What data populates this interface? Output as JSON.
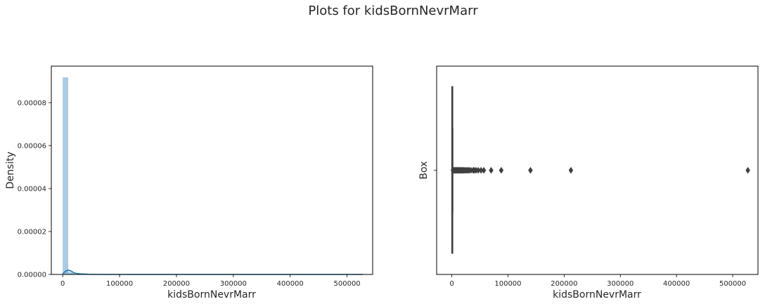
{
  "figure": {
    "suptitle": "Plots for kidsBornNevrMarr"
  },
  "chart_data": [
    {
      "type": "bar",
      "subtype": "histogram-with-kde",
      "title": "",
      "xlabel": "kidsBornNevrMarr",
      "ylabel": "Density",
      "xlim": [
        -20000,
        545000
      ],
      "ylim": [
        0,
        9.7e-05
      ],
      "xticks": [
        0,
        100000,
        200000,
        300000,
        400000,
        500000
      ],
      "xtick_labels": [
        "0",
        "100000",
        "200000",
        "300000",
        "400000",
        "500000"
      ],
      "yticks": [
        0,
        2e-05,
        4e-05,
        6e-05,
        8e-05
      ],
      "ytick_labels": [
        "0.00000",
        "0.00002",
        "0.00004",
        "0.00006",
        "0.00008"
      ],
      "bin_start": 0,
      "bin_width": 10500,
      "bin_values": [
        9.18e-05,
        8e-07,
        2e-07,
        1e-07,
        5e-08,
        3e-08,
        2e-08,
        2e-08,
        1e-08,
        1e-08,
        1e-08,
        5e-09,
        5e-09,
        5e-09,
        5e-09,
        5e-09,
        5e-09,
        5e-09,
        5e-09,
        5e-09,
        5e-09,
        5e-09,
        5e-09,
        5e-09,
        5e-09,
        5e-09,
        5e-09,
        5e-09,
        5e-09,
        5e-09,
        5e-09,
        5e-09,
        5e-09,
        5e-09,
        5e-09,
        5e-09,
        5e-09,
        5e-09,
        5e-09,
        5e-09,
        5e-09,
        5e-09,
        5e-09,
        5e-09,
        5e-09,
        5e-09,
        5e-09,
        5e-09,
        5e-09,
        5e-09
      ],
      "kde": {
        "x": [
          0,
          2000,
          4000,
          6000,
          8000,
          10000,
          12000,
          14000,
          16000,
          18000,
          20000,
          22000,
          24000,
          26000,
          28000,
          30000,
          34000,
          38000,
          42000,
          46000,
          50000,
          55000,
          60000,
          80000,
          100000,
          150000,
          200000,
          250000,
          300000,
          350000,
          400000,
          450000,
          500000,
          528000
        ],
        "y": [
          4e-07,
          8e-07,
          1.3e-06,
          1.7e-06,
          1.9e-06,
          2e-06,
          1.9e-06,
          1.7e-06,
          1.4e-06,
          1.1e-06,
          8e-07,
          6e-07,
          5e-07,
          4e-07,
          3.5e-07,
          3e-07,
          2.5e-07,
          2e-07,
          1.5e-07,
          1e-07,
          8e-08,
          6e-08,
          4e-08,
          2e-08,
          1e-08,
          5e-09,
          3e-09,
          2e-09,
          2e-09,
          2e-09,
          2e-09,
          2e-09,
          1e-09,
          0.0
        ]
      },
      "colors": {
        "bar": "#a6c8e0",
        "kde": "#1f77b4"
      }
    },
    {
      "type": "box",
      "title": "",
      "xlabel": "kidsBornNevrMarr",
      "ylabel": "Box",
      "xlim": [
        -27000,
        545000
      ],
      "xticks": [
        0,
        100000,
        200000,
        300000,
        400000,
        500000
      ],
      "xtick_labels": [
        "0",
        "100000",
        "200000",
        "300000",
        "400000",
        "500000"
      ],
      "box": {
        "q1": 0,
        "median": 120,
        "q3": 700,
        "whisker_low": 0,
        "whisker_high": 1750
      },
      "outliers": [
        2000,
        2500,
        3000,
        3500,
        4000,
        4500,
        5000,
        5500,
        6000,
        6500,
        7000,
        7500,
        8000,
        8500,
        9000,
        9500,
        10000,
        11000,
        12000,
        13000,
        14000,
        15000,
        16000,
        17000,
        18000,
        19000,
        20000,
        21500,
        23000,
        25000,
        27000,
        29000,
        31000,
        34000,
        38000,
        40000,
        43000,
        47000,
        52000,
        57000,
        70000,
        88000,
        140000,
        212000,
        527000
      ],
      "colors": {
        "box": "#3f3f3f"
      }
    }
  ]
}
